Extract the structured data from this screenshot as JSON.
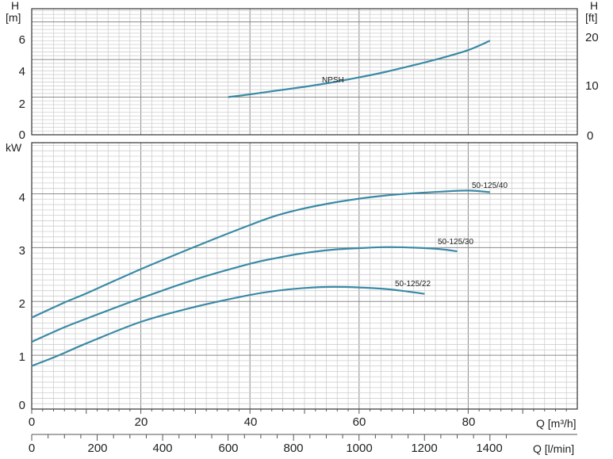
{
  "chart_data": [
    {
      "type": "line",
      "panel": "npsh",
      "title": "",
      "y_axis_left": {
        "label_line1": "H",
        "label_line2": "[m]",
        "ticks": [
          0,
          2,
          4,
          6
        ],
        "range": [
          0,
          6.7
        ]
      },
      "y_axis_right": {
        "label_line1": "H",
        "label_line2": "[ft]",
        "ticks": [
          0,
          10,
          20
        ],
        "range": [
          0,
          22
        ]
      },
      "grid": true,
      "series": [
        {
          "name": "NPSH",
          "x": [
            36,
            40,
            45,
            50,
            55,
            60,
            65,
            70,
            75,
            80,
            84
          ],
          "y": [
            2.0,
            2.15,
            2.35,
            2.55,
            2.78,
            3.05,
            3.35,
            3.7,
            4.07,
            4.5,
            5.0
          ]
        }
      ]
    },
    {
      "type": "line",
      "panel": "power",
      "title": "",
      "y_axis": {
        "label": "kW",
        "ticks": [
          0,
          1,
          2,
          3,
          4
        ],
        "range": [
          0,
          4.95
        ]
      },
      "x_axis_top": {
        "label": "Q [m³/h]",
        "ticks": [
          0,
          20,
          40,
          60,
          80
        ],
        "range": [
          0,
          100
        ]
      },
      "x_axis_bottom": {
        "label": "Q [l/min]",
        "ticks": [
          0,
          200,
          400,
          600,
          800,
          1000,
          1200,
          1400
        ],
        "range": [
          0,
          1667
        ]
      },
      "grid": true,
      "series": [
        {
          "name": "50-125/40",
          "x": [
            0,
            6,
            10,
            20,
            30,
            40,
            45,
            50,
            55,
            60,
            65,
            70,
            75,
            80,
            84
          ],
          "y": [
            1.7,
            1.98,
            2.15,
            2.6,
            3.02,
            3.42,
            3.6,
            3.73,
            3.83,
            3.91,
            3.97,
            4.01,
            4.04,
            4.06,
            4.03
          ]
        },
        {
          "name": "50-125/30",
          "x": [
            0,
            6,
            10,
            20,
            30,
            40,
            45,
            50,
            55,
            60,
            65,
            70,
            75,
            78
          ],
          "y": [
            1.25,
            1.52,
            1.68,
            2.06,
            2.41,
            2.7,
            2.81,
            2.9,
            2.96,
            2.99,
            3.01,
            3.0,
            2.97,
            2.93
          ]
        },
        {
          "name": "50-125/22",
          "x": [
            0,
            5,
            10,
            20,
            30,
            40,
            45,
            50,
            55,
            60,
            65,
            70,
            72
          ],
          "y": [
            0.8,
            1.0,
            1.22,
            1.62,
            1.9,
            2.12,
            2.2,
            2.25,
            2.27,
            2.26,
            2.23,
            2.17,
            2.14
          ]
        }
      ]
    }
  ]
}
